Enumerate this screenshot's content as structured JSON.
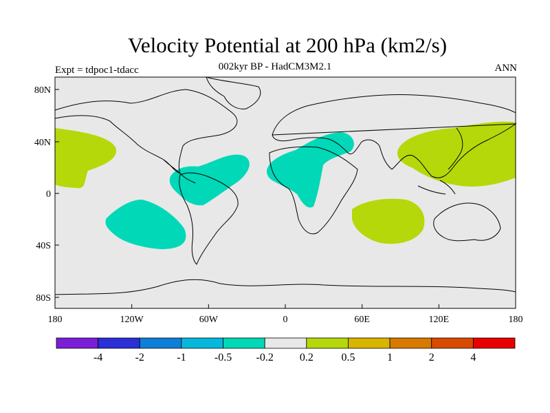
{
  "title": "Velocity Potential at 200 hPa (km2/s)",
  "subtitle": "002kyr BP - HadCM3M2.1",
  "left_label": "Expt = tdpoc1-tdacc",
  "right_label": "ANN",
  "map": {
    "background_color": "#e8e8e8",
    "lon_ticks": [
      "180",
      "120W",
      "60W",
      "0",
      "60E",
      "120E",
      "180"
    ],
    "lat_ticks": [
      "80N",
      "40N",
      "0",
      "40S",
      "80S"
    ]
  },
  "colorbar": {
    "colors": [
      "#7a1fd6",
      "#2a2fd6",
      "#0d7fd8",
      "#08b8dc",
      "#00d8b8",
      "#e8e8e8",
      "#b5d80a",
      "#d8b500",
      "#d87a00",
      "#d84a00",
      "#e80000"
    ],
    "labels": [
      "-4",
      "-2",
      "-1",
      "-0.5",
      "-0.2",
      "0.2",
      "0.5",
      "1",
      "2",
      "4"
    ]
  },
  "anomalies": [
    {
      "name": "positive-anomaly-east-pacific",
      "sign": "positive"
    },
    {
      "name": "positive-anomaly-west-pacific",
      "sign": "positive"
    },
    {
      "name": "positive-anomaly-indian-ocean",
      "sign": "positive"
    },
    {
      "name": "negative-anomaly-south-pacific",
      "sign": "negative"
    },
    {
      "name": "negative-anomaly-tropical-atlantic",
      "sign": "negative"
    },
    {
      "name": "negative-anomaly-africa-mideast",
      "sign": "negative"
    }
  ],
  "colors": {
    "positive_fill": "#b5d80a",
    "negative_fill": "#00d8b8"
  }
}
